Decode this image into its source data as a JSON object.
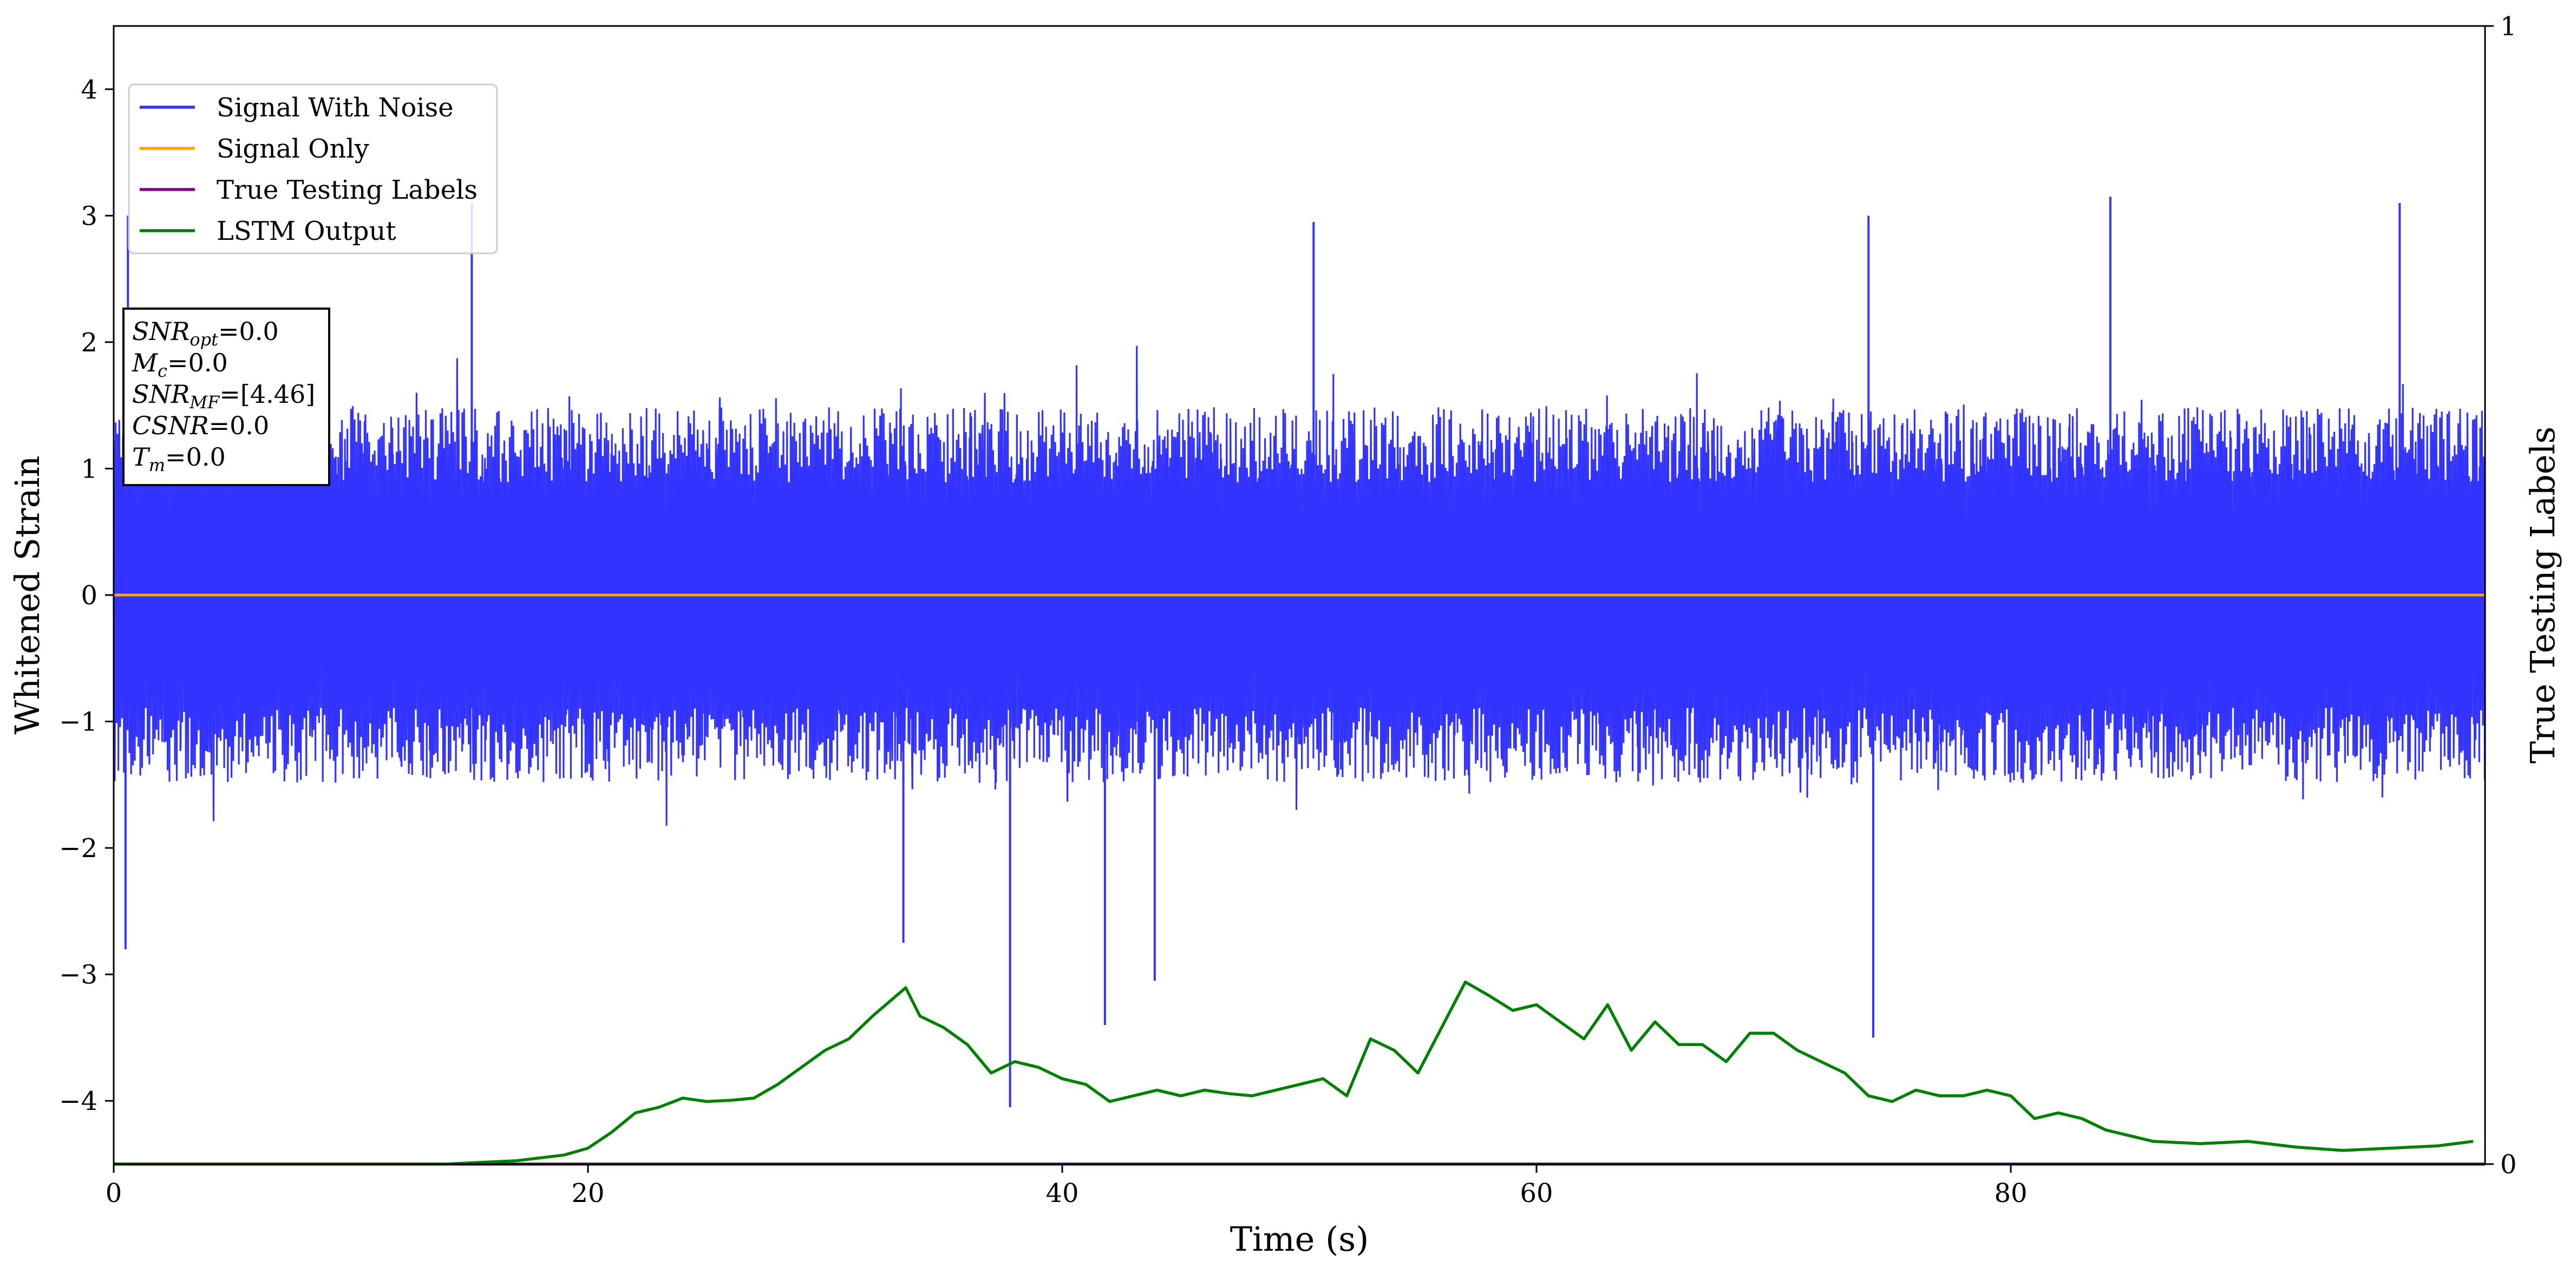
{
  "chart_data": {
    "type": "line",
    "xlabel": "Time (s)",
    "ylabel": "Whitened Strain",
    "y2label": "True Testing Labels",
    "xlim": [
      0,
      100
    ],
    "ylim": [
      -4.5,
      4.5
    ],
    "y2lim": [
      0,
      1
    ],
    "xticks": [
      0,
      20,
      40,
      60,
      80
    ],
    "yticks": [
      -4,
      -3,
      -2,
      -1,
      0,
      1,
      2,
      3,
      4
    ],
    "y2ticks": [
      0,
      1
    ],
    "xtick_labels": [
      "0",
      "20",
      "40",
      "60",
      "80"
    ],
    "ytick_labels": [
      "−4",
      "−3",
      "−2",
      "−1",
      "0",
      "1",
      "2",
      "3",
      "4"
    ],
    "y2tick_labels": [
      "0",
      "1"
    ],
    "grid": false,
    "legend_position": "top-left",
    "legend": [
      {
        "label": "Signal With Noise",
        "color": "#3333ff"
      },
      {
        "label": "Signal Only",
        "color": "#ffa500"
      },
      {
        "label": "True Testing Labels",
        "color": "#800080"
      },
      {
        "label": "LSTM Output",
        "color": "#008000"
      }
    ],
    "series": [
      {
        "name": "Signal With Noise",
        "color": "#3333ff",
        "noise_amplitude_std": 0.55,
        "notable_peaks": [
          {
            "x": 0.6,
            "y": 3.0
          },
          {
            "x": 15.1,
            "y": 3.1
          },
          {
            "x": 84.2,
            "y": 3.15
          },
          {
            "x": 96.4,
            "y": 3.1
          },
          {
            "x": 74.0,
            "y": 3.0
          },
          {
            "x": 50.6,
            "y": 2.95
          }
        ],
        "notable_troughs": [
          {
            "x": 0.5,
            "y": -2.8
          },
          {
            "x": 37.8,
            "y": -4.05
          },
          {
            "x": 41.8,
            "y": -3.4
          },
          {
            "x": 43.9,
            "y": -3.05
          },
          {
            "x": 74.2,
            "y": -3.5
          },
          {
            "x": 33.3,
            "y": -2.75
          }
        ]
      },
      {
        "name": "Signal Only",
        "color": "#ffa500",
        "x": [
          0,
          100
        ],
        "y": [
          0,
          0
        ]
      },
      {
        "name": "True Testing Labels",
        "axis": "right",
        "color": "#800080",
        "x": [
          0,
          100
        ],
        "y": [
          0,
          0
        ]
      },
      {
        "name": "LSTM Output",
        "axis": "right",
        "color": "#008000",
        "x": [
          0,
          14,
          17,
          19,
          20,
          21,
          22,
          23,
          24,
          25,
          26,
          27,
          28,
          29,
          30,
          31,
          32,
          33.4,
          34,
          35,
          36,
          37,
          38,
          39,
          40,
          41,
          42,
          43,
          44,
          45,
          46,
          47,
          48,
          49,
          50,
          51,
          52,
          53,
          54,
          55,
          56,
          57,
          58,
          59,
          60,
          61,
          62,
          63,
          64,
          65,
          66,
          67,
          68,
          69,
          70,
          71,
          72,
          73,
          74,
          75,
          76,
          77,
          78,
          79,
          80,
          81,
          82,
          83,
          84,
          85,
          86,
          88,
          90,
          92,
          94,
          96,
          98,
          99.5
        ],
        "y": [
          0,
          0,
          0.003,
          0.008,
          0.014,
          0.028,
          0.045,
          0.05,
          0.058,
          0.055,
          0.056,
          0.058,
          0.07,
          0.085,
          0.1,
          0.11,
          0.13,
          0.155,
          0.13,
          0.12,
          0.105,
          0.08,
          0.09,
          0.085,
          0.075,
          0.07,
          0.055,
          0.06,
          0.065,
          0.06,
          0.065,
          0.062,
          0.06,
          0.065,
          0.07,
          0.075,
          0.06,
          0.11,
          0.1,
          0.08,
          0.12,
          0.16,
          0.148,
          0.135,
          0.14,
          0.125,
          0.11,
          0.14,
          0.1,
          0.125,
          0.105,
          0.105,
          0.09,
          0.115,
          0.115,
          0.1,
          0.09,
          0.08,
          0.06,
          0.055,
          0.065,
          0.06,
          0.06,
          0.065,
          0.06,
          0.04,
          0.045,
          0.04,
          0.03,
          0.025,
          0.02,
          0.018,
          0.02,
          0.015,
          0.012,
          0.014,
          0.016,
          0.02
        ]
      }
    ],
    "annotation": {
      "lines": [
        {
          "pre": "SNR",
          "sub": "opt",
          "post": "=0.0"
        },
        {
          "pre": "M",
          "sub": "c",
          "post": "=0.0"
        },
        {
          "pre": "SNR",
          "sub": "MF",
          "post": "=[4.46]"
        },
        {
          "pre": "CSNR",
          "sub": "",
          "post": "=0.0"
        },
        {
          "pre": "T",
          "sub": "m",
          "post": "=0.0"
        }
      ]
    }
  }
}
